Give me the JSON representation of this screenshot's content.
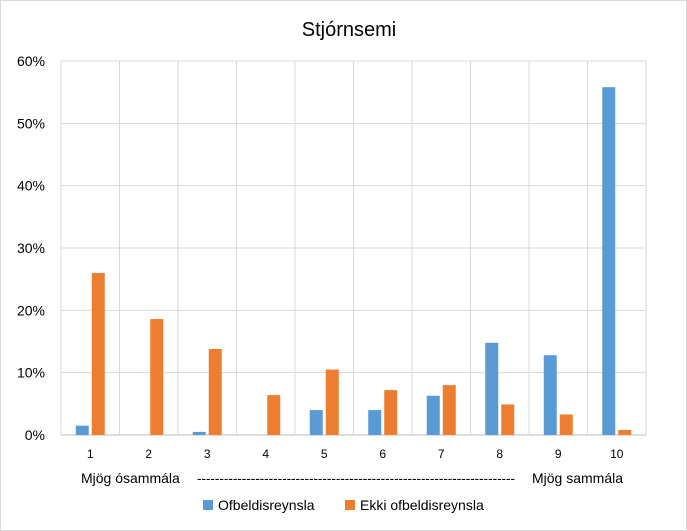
{
  "chart_data": {
    "type": "bar",
    "title": "Stjórnsemi",
    "categories": [
      "1",
      "2",
      "3",
      "4",
      "5",
      "6",
      "7",
      "8",
      "9",
      "10"
    ],
    "series": [
      {
        "name": "Ofbeldisreynsla",
        "color": "#5b9bd5",
        "values": [
          1.5,
          0,
          0.5,
          0,
          4,
          4,
          6.3,
          14.8,
          12.8,
          55.8
        ]
      },
      {
        "name": "Ekki ofbeldisreynsla",
        "color": "#ed7d31",
        "values": [
          26,
          18.6,
          13.8,
          6.4,
          10.5,
          7.2,
          8,
          4.9,
          3.3,
          0.8
        ]
      }
    ],
    "ylim": [
      0,
      60
    ],
    "yticks": [
      "0%",
      "10%",
      "20%",
      "30%",
      "40%",
      "50%",
      "60%"
    ],
    "grid": true,
    "legend_position": "bottom",
    "xaxis_note": {
      "left": "Mjög ósammála",
      "dashes": "-----------------------------------------------------------------------",
      "right": "Mjög sammála"
    }
  }
}
